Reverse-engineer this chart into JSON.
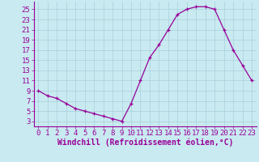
{
  "x": [
    0,
    1,
    2,
    3,
    4,
    5,
    6,
    7,
    8,
    9,
    10,
    11,
    12,
    13,
    14,
    15,
    16,
    17,
    18,
    19,
    20,
    21,
    22,
    23
  ],
  "y": [
    9,
    8,
    7.5,
    6.5,
    5.5,
    5,
    4.5,
    4,
    3.5,
    3,
    6.5,
    11,
    15.5,
    18,
    21,
    24,
    25,
    25.5,
    25.5,
    25,
    21,
    17,
    14,
    11
  ],
  "bg_color": "#c8eaf0",
  "grid_color": "#aacfdc",
  "line_color": "#990099",
  "marker_color": "#990099",
  "xlabel": "Windchill (Refroidissement éolien,°C)",
  "tick_color": "#990099",
  "yticks": [
    3,
    5,
    7,
    9,
    11,
    13,
    15,
    17,
    19,
    21,
    23,
    25
  ],
  "xticks": [
    0,
    1,
    2,
    3,
    4,
    5,
    6,
    7,
    8,
    9,
    10,
    11,
    12,
    13,
    14,
    15,
    16,
    17,
    18,
    19,
    20,
    21,
    22,
    23
  ],
  "ylim": [
    2.0,
    26.5
  ],
  "xlim": [
    -0.5,
    23.5
  ],
  "font_size": 6.5,
  "label_font_size": 7.0
}
